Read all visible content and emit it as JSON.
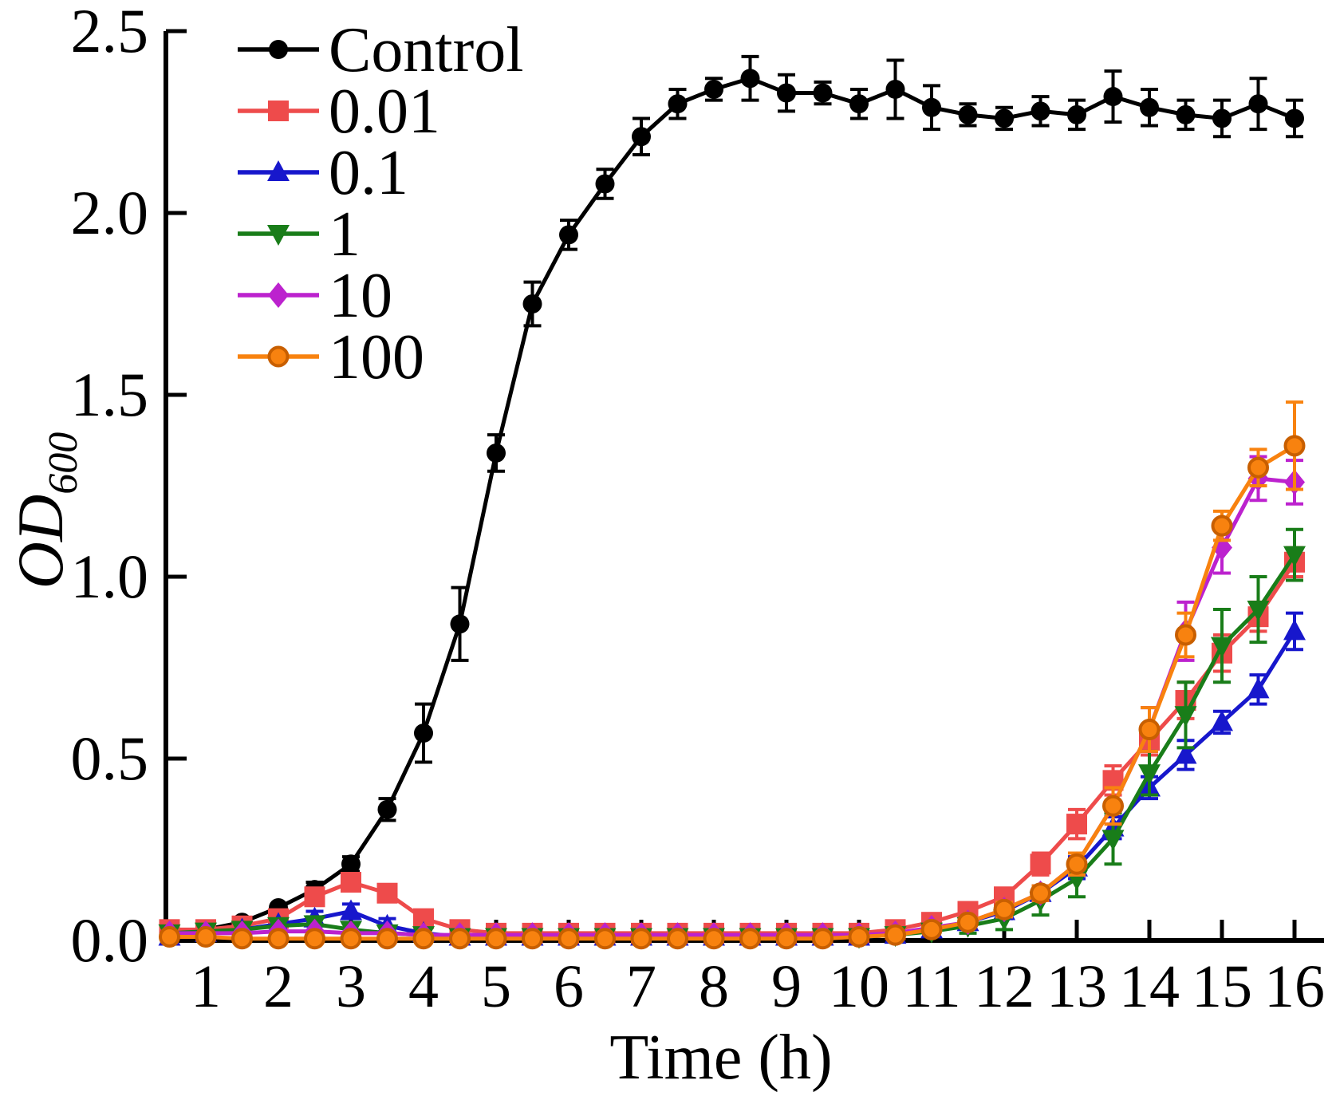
{
  "figure": {
    "xlabel": "Time (h)",
    "ylabel_main": "OD",
    "ylabel_sub": "600",
    "x_ticks": [
      1,
      2,
      3,
      4,
      5,
      6,
      7,
      8,
      9,
      10,
      11,
      12,
      13,
      14,
      15,
      16
    ],
    "y_ticks": [
      {
        "v": 0.0,
        "label": "0.0"
      },
      {
        "v": 0.5,
        "label": "0.5"
      },
      {
        "v": 1.0,
        "label": "1.0"
      },
      {
        "v": 1.5,
        "label": "1.5"
      },
      {
        "v": 2.0,
        "label": "2.0"
      },
      {
        "v": 2.5,
        "label": "2.5"
      }
    ],
    "legend_labels": [
      "Control",
      "0.01",
      "0.1",
      "1",
      "10",
      "100"
    ]
  },
  "chart_data": {
    "type": "line",
    "title": "",
    "xlabel": "Time (h)",
    "ylabel": "OD600",
    "xlim": [
      0.5,
      16.4
    ],
    "ylim": [
      0,
      2.5
    ],
    "grid": false,
    "legend_position": "top-left",
    "x": [
      0.5,
      1,
      1.5,
      2,
      2.5,
      3,
      3.5,
      4,
      4.5,
      5,
      5.5,
      6,
      6.5,
      7,
      7.5,
      8,
      8.5,
      9,
      9.5,
      10,
      10.5,
      11,
      11.5,
      12,
      12.5,
      13,
      13.5,
      14,
      14.5,
      15,
      15.5,
      16
    ],
    "series": [
      {
        "name": "Control",
        "color": "#000000",
        "marker": "circle",
        "values": [
          0.02,
          0.03,
          0.05,
          0.09,
          0.14,
          0.21,
          0.36,
          0.57,
          0.87,
          1.34,
          1.75,
          1.94,
          2.08,
          2.21,
          2.3,
          2.34,
          2.37,
          2.33,
          2.33,
          2.3,
          2.34,
          2.29,
          2.27,
          2.26,
          2.28,
          2.27,
          2.32,
          2.29,
          2.27,
          2.26,
          2.3,
          2.26
        ],
        "errors": [
          0.02,
          0.01,
          0.01,
          0.01,
          0.02,
          0.02,
          0.03,
          0.08,
          0.1,
          0.05,
          0.06,
          0.04,
          0.04,
          0.05,
          0.04,
          0.03,
          0.06,
          0.05,
          0.03,
          0.04,
          0.08,
          0.06,
          0.03,
          0.03,
          0.04,
          0.04,
          0.07,
          0.05,
          0.04,
          0.05,
          0.07,
          0.05
        ]
      },
      {
        "name": "0.01",
        "color": "#ee4b4b",
        "marker": "square",
        "values": [
          0.03,
          0.03,
          0.04,
          0.06,
          0.12,
          0.16,
          0.13,
          0.06,
          0.03,
          0.02,
          0.02,
          0.02,
          0.02,
          0.02,
          0.02,
          0.02,
          0.02,
          0.02,
          0.02,
          0.02,
          0.03,
          0.05,
          0.08,
          0.12,
          0.21,
          0.32,
          0.44,
          0.55,
          0.66,
          0.79,
          0.89,
          1.04
        ],
        "errors": [
          0.02,
          0.01,
          0.01,
          0.01,
          0.02,
          0.02,
          0.02,
          0.01,
          0.01,
          0.01,
          0.01,
          0.01,
          0.01,
          0.01,
          0.01,
          0.01,
          0.01,
          0.01,
          0.01,
          0.01,
          0.01,
          0.01,
          0.02,
          0.02,
          0.03,
          0.04,
          0.04,
          0.04,
          0.05,
          0.05,
          0.04,
          0.04
        ]
      },
      {
        "name": "0.1",
        "color": "#1717cc",
        "marker": "triangle-up",
        "values": [
          0.01,
          0.02,
          0.03,
          0.045,
          0.06,
          0.08,
          0.04,
          0.02,
          0.01,
          0.01,
          0.01,
          0.01,
          0.01,
          0.01,
          0.01,
          0.01,
          0.01,
          0.01,
          0.01,
          0.01,
          0.015,
          0.03,
          0.05,
          0.08,
          0.13,
          0.2,
          0.31,
          0.42,
          0.51,
          0.6,
          0.69,
          0.85
        ],
        "errors": [
          0.01,
          0.01,
          0.01,
          0.01,
          0.02,
          0.02,
          0.02,
          0.01,
          0.01,
          0.01,
          0.01,
          0.01,
          0.01,
          0.01,
          0.01,
          0.01,
          0.01,
          0.01,
          0.01,
          0.01,
          0.01,
          0.01,
          0.01,
          0.02,
          0.02,
          0.03,
          0.03,
          0.03,
          0.04,
          0.03,
          0.04,
          0.05
        ]
      },
      {
        "name": "1",
        "color": "#197d19",
        "marker": "triangle-down",
        "values": [
          0.02,
          0.025,
          0.03,
          0.04,
          0.045,
          0.03,
          0.02,
          0.015,
          0.01,
          0.01,
          0.01,
          0.01,
          0.01,
          0.01,
          0.01,
          0.01,
          0.01,
          0.01,
          0.01,
          0.01,
          0.015,
          0.025,
          0.04,
          0.06,
          0.11,
          0.17,
          0.28,
          0.46,
          0.62,
          0.81,
          0.91,
          1.06
        ],
        "errors": [
          0.01,
          0.01,
          0.01,
          0.01,
          0.02,
          0.01,
          0.01,
          0.01,
          0.01,
          0.01,
          0.01,
          0.01,
          0.01,
          0.01,
          0.01,
          0.01,
          0.01,
          0.01,
          0.01,
          0.01,
          0.01,
          0.01,
          0.02,
          0.03,
          0.04,
          0.05,
          0.07,
          0.06,
          0.09,
          0.1,
          0.09,
          0.07
        ]
      },
      {
        "name": "10",
        "color": "#bc22ce",
        "marker": "diamond",
        "values": [
          0.02,
          0.02,
          0.02,
          0.025,
          0.025,
          0.02,
          0.02,
          0.015,
          0.015,
          0.015,
          0.015,
          0.015,
          0.015,
          0.015,
          0.015,
          0.015,
          0.015,
          0.015,
          0.015,
          0.015,
          0.02,
          0.035,
          0.05,
          0.085,
          0.13,
          0.21,
          0.37,
          0.58,
          0.85,
          1.08,
          1.27,
          1.26
        ],
        "errors": [
          0.01,
          0.01,
          0.01,
          0.01,
          0.01,
          0.01,
          0.01,
          0.01,
          0.01,
          0.01,
          0.01,
          0.01,
          0.01,
          0.01,
          0.01,
          0.01,
          0.01,
          0.01,
          0.01,
          0.01,
          0.01,
          0.01,
          0.01,
          0.02,
          0.02,
          0.03,
          0.05,
          0.06,
          0.08,
          0.07,
          0.06,
          0.06
        ]
      },
      {
        "name": "100",
        "color": "#f8820f",
        "marker": "circle-edged",
        "marker_edge": "#c85f00",
        "values": [
          0.01,
          0.01,
          0.005,
          0.005,
          0.005,
          0.005,
          0.005,
          0.005,
          0.005,
          0.005,
          0.005,
          0.005,
          0.005,
          0.005,
          0.005,
          0.005,
          0.005,
          0.005,
          0.005,
          0.01,
          0.015,
          0.03,
          0.05,
          0.085,
          0.13,
          0.21,
          0.37,
          0.58,
          0.84,
          1.14,
          1.3,
          1.36
        ],
        "errors": [
          0.01,
          0.01,
          0.01,
          0.01,
          0.01,
          0.01,
          0.01,
          0.01,
          0.01,
          0.01,
          0.01,
          0.01,
          0.01,
          0.01,
          0.01,
          0.01,
          0.01,
          0.01,
          0.01,
          0.01,
          0.01,
          0.01,
          0.01,
          0.02,
          0.02,
          0.03,
          0.05,
          0.06,
          0.06,
          0.04,
          0.05,
          0.12
        ]
      }
    ]
  }
}
